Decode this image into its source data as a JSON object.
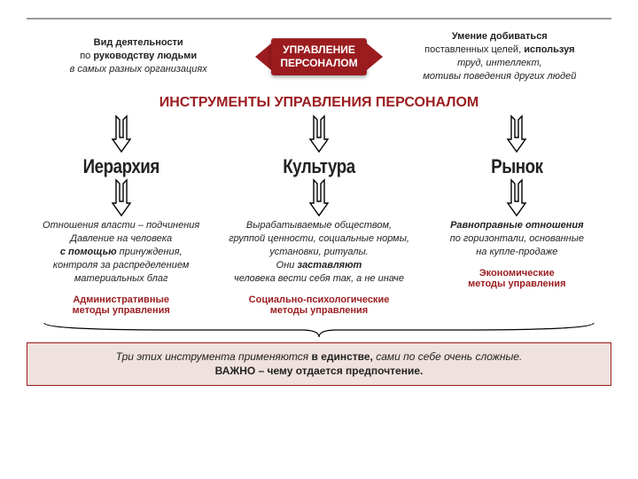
{
  "colors": {
    "accent": "#9b1c1f",
    "box_bg": "#efe1dd",
    "box_border": "#9b1c1f",
    "rule": "#999"
  },
  "top": {
    "left_line1": "Вид деятельности",
    "left_line2_pre": "по ",
    "left_line2_b": "руководству людьми",
    "left_line3": "в самых разных организациях",
    "badge": "УПРАВЛЕНИЕ\nПЕРСОНАЛОМ",
    "right_line1": "Умение добиваться",
    "right_line2_pre": "поставленных целей, ",
    "right_line2_b": "используя",
    "right_line3": "труд, интеллект,",
    "right_line4": "мотивы поведения других людей"
  },
  "section_title": "ИНСТРУМЕНТЫ УПРАВЛЕНИЯ ПЕРСОНАЛОМ",
  "cols": [
    {
      "heading": "Иерархия",
      "desc_lines": [
        {
          "plain": "Отношения власти – подчинения"
        },
        {
          "plain": "Давление на человека"
        },
        {
          "b": "с помощью ",
          "plain": "принуждения,"
        },
        {
          "plain": "контроля за распределением"
        },
        {
          "plain": "материальных благ"
        }
      ],
      "method": "Административные\nметоды управления"
    },
    {
      "heading": "Культура",
      "desc_lines": [
        {
          "plain": "Вырабатываемые обществом,"
        },
        {
          "plain": "группой ценности, социальные нормы,"
        },
        {
          "plain": "установки, ритуалы."
        },
        {
          "pre": "Они ",
          "b": "заставляют"
        },
        {
          "plain": "человека вести себя так, а не иначе"
        }
      ],
      "method": "Социально-психологические\nметоды управления"
    },
    {
      "heading": "Рынок",
      "desc_lines": [
        {
          "b": "Равноправные отношения"
        },
        {
          "plain": "по горизонтали, основанные"
        },
        {
          "plain": "на купле-продаже"
        }
      ],
      "method": "Экономические\nметоды управления"
    }
  ],
  "bottom": {
    "line1_pre": "Три этих инструмента применяются ",
    "line1_b": "в единстве,",
    "line1_post": " сами по себе очень сложные.",
    "line2_b": "ВАЖНО",
    "line2_post": " – чему отдается предпочтение."
  },
  "style": {
    "badge_fontsize": 12,
    "heading_fontsize": 22,
    "desc_fontsize": 11,
    "method_fontsize": 11,
    "section_fontsize": 16,
    "arrow_stroke": "#000",
    "arrow_width": 24,
    "arrow_height": 44
  }
}
